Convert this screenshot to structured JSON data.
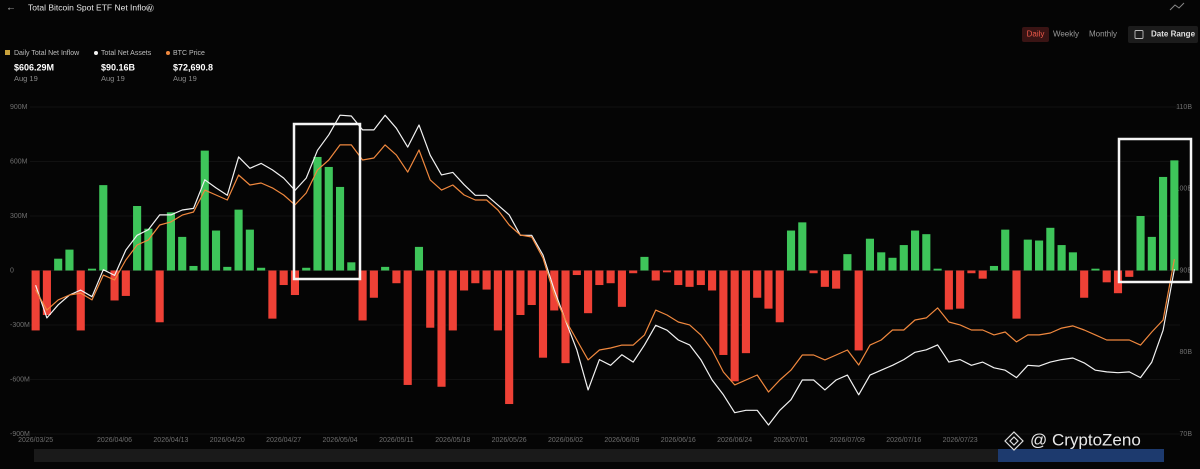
{
  "header": {
    "title": "Total Bitcoin Spot ETF Net Inflow",
    "tabs": [
      "Daily",
      "Weekly",
      "Monthly"
    ],
    "date_range": "Date Range",
    "watermark": "@ CryptoZeno"
  },
  "chart_data": {
    "type": "combo",
    "categories": [
      "2026/03/25",
      null,
      null,
      null,
      null,
      null,
      null,
      "2026/04/06",
      null,
      null,
      null,
      null,
      "2026/04/13",
      null,
      null,
      null,
      null,
      "2026/04/20",
      null,
      null,
      null,
      null,
      "2026/04/27",
      null,
      null,
      null,
      null,
      "2026/05/04",
      null,
      null,
      null,
      null,
      "2026/05/11",
      null,
      null,
      null,
      null,
      "2026/05/18",
      null,
      null,
      null,
      null,
      "2026/05/26",
      null,
      null,
      null,
      null,
      "2026/06/02",
      null,
      null,
      null,
      null,
      "2026/06/09",
      null,
      null,
      null,
      null,
      "2026/06/16",
      null,
      null,
      null,
      null,
      "2026/06/24",
      null,
      null,
      null,
      null,
      "2026/07/01",
      null,
      null,
      null,
      null,
      "2026/07/09",
      null,
      null,
      null,
      null,
      "2026/07/16",
      null,
      null,
      null,
      null,
      "2026/07/23",
      null,
      null,
      null,
      null,
      null,
      null,
      null,
      null,
      null,
      null,
      null,
      null,
      null,
      null,
      null,
      null,
      null,
      null,
      null
    ],
    "series": [
      {
        "name": "Daily Total Net Inflow",
        "type": "bar",
        "positive_color": "#3ec55a",
        "negative_color": "#ef4136",
        "latest_label": "$606.29M",
        "latest_date": "Aug 19",
        "values": [
          -330,
          -245,
          65,
          115,
          -330,
          10,
          470,
          -165,
          -140,
          355,
          230,
          -285,
          320,
          185,
          25,
          660,
          220,
          20,
          335,
          225,
          15,
          -265,
          -80,
          -135,
          15,
          625,
          570,
          460,
          45,
          -275,
          -150,
          20,
          -70,
          -630,
          130,
          -315,
          -640,
          -330,
          -110,
          -70,
          -105,
          -330,
          -735,
          -245,
          -190,
          -480,
          -220,
          -510,
          -25,
          -235,
          -80,
          -70,
          -200,
          -15,
          75,
          -55,
          -10,
          -80,
          -90,
          -80,
          -110,
          -465,
          -610,
          -455,
          -150,
          -210,
          -285,
          220,
          265,
          -15,
          -90,
          -100,
          90,
          -440,
          175,
          100,
          70,
          140,
          220,
          200,
          10,
          -215,
          -210,
          -15,
          -45,
          25,
          225,
          -265,
          170,
          165,
          235,
          140,
          100,
          -150,
          10,
          -65,
          -125,
          -35,
          300,
          185,
          515,
          606.29
        ]
      },
      {
        "name": "Total Net Assets",
        "type": "line",
        "color": "#f2f2f2",
        "axis": "y2",
        "latest_label": "$90.16B",
        "latest_date": "Aug 19",
        "values": [
          88.2,
          84.2,
          85.8,
          87.0,
          87.6,
          86.8,
          90.1,
          89.4,
          92.5,
          94.3,
          95.0,
          96.8,
          96.8,
          97.4,
          97.6,
          101.1,
          100.1,
          99.2,
          103.9,
          102.5,
          103.1,
          102.3,
          101.3,
          99.8,
          101.3,
          104.7,
          106.6,
          109.0,
          108.9,
          107.2,
          107.2,
          109.0,
          107.4,
          105.1,
          107.8,
          104.1,
          101.7,
          102.0,
          100.5,
          99.2,
          99.2,
          98.0,
          96.8,
          94.3,
          94.3,
          91.9,
          87.6,
          83.9,
          80.3,
          75.4,
          79.1,
          78.4,
          79.7,
          78.8,
          80.9,
          83.3,
          82.7,
          81.5,
          80.9,
          79.1,
          76.6,
          74.8,
          72.6,
          72.9,
          72.9,
          71.1,
          72.9,
          74.2,
          76.6,
          76.6,
          75.4,
          76.6,
          77.2,
          74.8,
          77.2,
          77.8,
          78.4,
          79.1,
          80.0,
          80.3,
          80.9,
          78.8,
          79.1,
          78.4,
          78.8,
          78.1,
          77.8,
          76.9,
          78.4,
          78.3,
          78.8,
          79.1,
          79.3,
          78.7,
          77.8,
          77.6,
          77.5,
          77.6,
          76.9,
          78.8,
          82.7,
          90.16
        ]
      },
      {
        "name": "BTC Price",
        "type": "line",
        "color": "#f0883e",
        "axis": "y3",
        "latest_label": "$72,690.8",
        "latest_date": "Aug 19",
        "values": [
          70810,
          69580,
          70200,
          70500,
          70620,
          70200,
          71720,
          71420,
          72640,
          73560,
          73870,
          74780,
          74970,
          75390,
          75580,
          76920,
          76620,
          76310,
          77840,
          77230,
          77350,
          77050,
          76620,
          76010,
          76740,
          78150,
          78760,
          79680,
          79680,
          78760,
          78880,
          79680,
          79060,
          78020,
          79370,
          77540,
          76920,
          77230,
          76620,
          76310,
          76310,
          75700,
          74780,
          74170,
          74050,
          72760,
          70500,
          68970,
          67750,
          66530,
          67140,
          67260,
          67440,
          67440,
          68060,
          69580,
          69280,
          68850,
          68670,
          68060,
          67140,
          65790,
          65000,
          65300,
          65610,
          64570,
          65300,
          65910,
          66830,
          66830,
          66530,
          66830,
          67140,
          66220,
          67440,
          67750,
          68360,
          68360,
          68970,
          69100,
          69710,
          68850,
          68670,
          68360,
          68360,
          68060,
          68240,
          67630,
          68060,
          68060,
          68180,
          68480,
          68610,
          68360,
          68060,
          67750,
          67750,
          67750,
          67440,
          68240,
          68970,
          72690.8
        ]
      }
    ],
    "ylim": [
      -900,
      900
    ],
    "yticks": [
      {
        "value": 900,
        "label": "900M"
      },
      {
        "value": 600,
        "label": "600M"
      },
      {
        "value": 300,
        "label": "300M"
      },
      0,
      {
        "value": -300,
        "label": "-300M"
      },
      {
        "value": -600,
        "label": "-600M"
      },
      {
        "value": -900,
        "label": "-900M"
      }
    ],
    "y2lim": [
      70,
      110
    ],
    "y2ticks": [
      {
        "value": 110,
        "label": "110B"
      },
      {
        "value": 100,
        "label": "100B"
      },
      {
        "value": 90,
        "label": "90B"
      },
      {
        "value": 80,
        "label": "80B"
      },
      {
        "value": 70,
        "label": "70B"
      }
    ],
    "y3lim": [
      62000,
      82000
    ],
    "grid": true
  }
}
